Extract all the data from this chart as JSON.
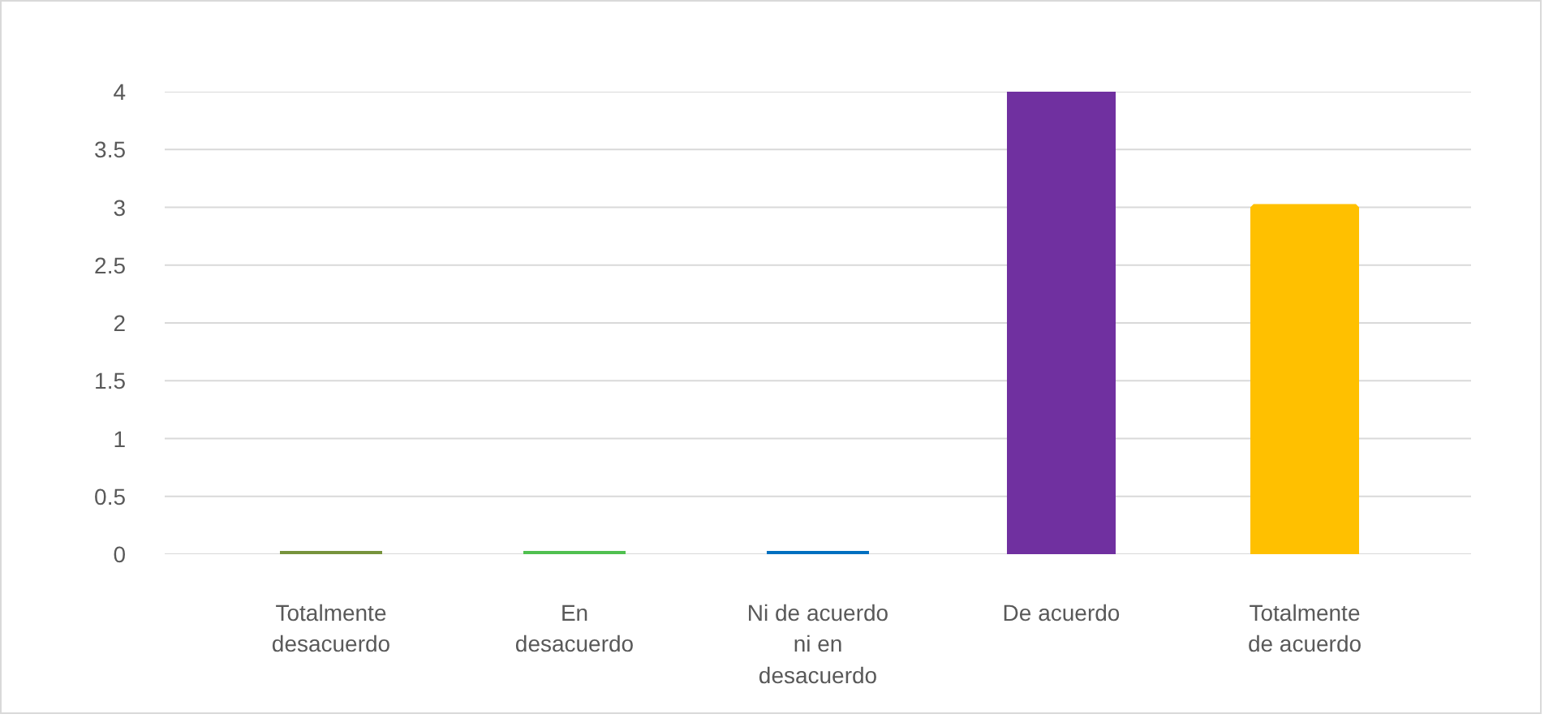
{
  "chart_data": {
    "type": "bar",
    "categories": [
      "Totalmente desacuerdo",
      "En desacuerdo",
      "Ni de acuerdo ni en desacuerdo",
      "De acuerdo",
      "Totalmente de acuerdo"
    ],
    "values": [
      0,
      0,
      0,
      4,
      3
    ],
    "colors": [
      "#77933c",
      "#50c050",
      "#0070c0",
      "#7030a0",
      "#ffc000"
    ],
    "ylim": [
      0,
      4
    ],
    "yticks": [
      0,
      0.5,
      1,
      1.5,
      2,
      2.5,
      3,
      3.5,
      4
    ],
    "grid": "y"
  }
}
